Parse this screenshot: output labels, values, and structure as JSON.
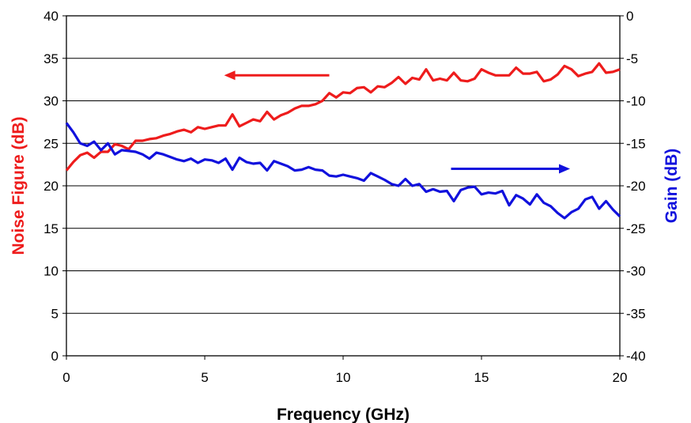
{
  "chart_data": {
    "type": "line",
    "xlabel": "Frequency (GHz)",
    "ylabel_left": "Noise Figure (dB)",
    "ylabel_right": "Gain (dB)",
    "xlim": [
      0,
      20
    ],
    "ylim_left": [
      0,
      40
    ],
    "ylim_right": [
      -40,
      0
    ],
    "x_ticks": [
      "0",
      "5",
      "10",
      "15",
      "20"
    ],
    "y_ticks_left": [
      "0",
      "5",
      "10",
      "15",
      "20",
      "25",
      "30",
      "35",
      "40"
    ],
    "y_ticks_right": [
      "-40",
      "-35",
      "-30",
      "-25",
      "-20",
      "-15",
      "-10",
      "-5",
      "0"
    ],
    "grid": "horizontal",
    "series": [
      {
        "axis": "left",
        "color": "#ee1c1c",
        "x": [
          0,
          0.25,
          0.5,
          0.75,
          1,
          1.25,
          1.5,
          1.75,
          2,
          2.25,
          2.5,
          2.75,
          3,
          3.25,
          3.5,
          3.75,
          4,
          4.25,
          4.5,
          4.75,
          5,
          5.25,
          5.5,
          5.75,
          6,
          6.25,
          6.5,
          6.75,
          7,
          7.25,
          7.5,
          7.75,
          8,
          8.25,
          8.5,
          8.75,
          9,
          9.25,
          9.5,
          9.75,
          10,
          10.25,
          10.5,
          10.75,
          11,
          11.25,
          11.5,
          11.75,
          12,
          12.25,
          12.5,
          12.75,
          13,
          13.25,
          13.5,
          13.75,
          14,
          14.25,
          14.5,
          14.75,
          15,
          15.25,
          15.5,
          15.75,
          16,
          16.25,
          16.5,
          16.75,
          17,
          17.25,
          17.5,
          17.75,
          18,
          18.25,
          18.5,
          18.75,
          19,
          19.25,
          19.5,
          19.75,
          20
        ],
        "values": [
          21.8,
          22.8,
          23.6,
          23.9,
          23.3,
          24.0,
          24.0,
          24.9,
          24.7,
          24.3,
          25.3,
          25.3,
          25.5,
          25.6,
          25.9,
          26.1,
          26.4,
          26.6,
          26.3,
          26.9,
          26.7,
          26.9,
          27.1,
          27.1,
          28.4,
          27.0,
          27.4,
          27.8,
          27.6,
          28.7,
          27.8,
          28.3,
          28.6,
          29.1,
          29.4,
          29.4,
          29.6,
          30.0,
          30.9,
          30.4,
          31.0,
          30.9,
          31.5,
          31.6,
          31.0,
          31.7,
          31.6,
          32.1,
          32.8,
          32.0,
          32.7,
          32.5,
          33.7,
          32.4,
          32.6,
          32.4,
          33.3,
          32.4,
          32.3,
          32.6,
          33.7,
          33.3,
          33.0,
          33.0,
          33.0,
          33.9,
          33.2,
          33.2,
          33.4,
          32.3,
          32.5,
          33.1,
          34.1,
          33.7,
          32.9,
          33.2,
          33.4,
          34.4,
          33.3,
          33.4,
          33.7
        ]
      },
      {
        "axis": "right",
        "color": "#1111dd",
        "x": [
          0,
          0.25,
          0.5,
          0.75,
          1,
          1.25,
          1.5,
          1.75,
          2,
          2.25,
          2.5,
          2.75,
          3,
          3.25,
          3.5,
          3.75,
          4,
          4.25,
          4.5,
          4.75,
          5,
          5.25,
          5.5,
          5.75,
          6,
          6.25,
          6.5,
          6.75,
          7,
          7.25,
          7.5,
          7.75,
          8,
          8.25,
          8.5,
          8.75,
          9,
          9.25,
          9.5,
          9.75,
          10,
          10.25,
          10.5,
          10.75,
          11,
          11.25,
          11.5,
          11.75,
          12,
          12.25,
          12.5,
          12.75,
          13,
          13.25,
          13.5,
          13.75,
          14,
          14.25,
          14.5,
          14.75,
          15,
          15.25,
          15.5,
          15.75,
          16,
          16.25,
          16.5,
          16.75,
          17,
          17.25,
          17.5,
          17.75,
          18,
          18.25,
          18.5,
          18.75,
          19,
          19.25,
          19.5,
          19.75,
          20
        ],
        "values": [
          -12.6,
          -13.7,
          -15.0,
          -15.3,
          -14.8,
          -15.8,
          -15.0,
          -16.3,
          -15.8,
          -15.9,
          -16.0,
          -16.3,
          -16.8,
          -16.1,
          -16.3,
          -16.6,
          -16.9,
          -17.1,
          -16.8,
          -17.3,
          -16.9,
          -17.0,
          -17.3,
          -16.8,
          -18.1,
          -16.7,
          -17.2,
          -17.4,
          -17.3,
          -18.2,
          -17.1,
          -17.4,
          -17.7,
          -18.2,
          -18.1,
          -17.8,
          -18.1,
          -18.2,
          -18.8,
          -18.9,
          -18.7,
          -18.9,
          -19.1,
          -19.4,
          -18.5,
          -18.9,
          -19.3,
          -19.8,
          -20.0,
          -19.2,
          -20.0,
          -19.8,
          -20.7,
          -20.4,
          -20.7,
          -20.6,
          -21.8,
          -20.5,
          -20.2,
          -20.1,
          -21.0,
          -20.8,
          -20.9,
          -20.6,
          -22.3,
          -21.1,
          -21.5,
          -22.2,
          -21.0,
          -22.0,
          -22.4,
          -23.2,
          -23.8,
          -23.1,
          -22.7,
          -21.6,
          -21.3,
          -22.7,
          -21.8,
          -22.8,
          -23.6
        ]
      }
    ],
    "annotations": [
      {
        "type": "arrow",
        "direction": "left",
        "color": "#ee1c1c",
        "from": [
          9.5,
          33.0
        ],
        "to": [
          5.7,
          33.0
        ]
      },
      {
        "type": "arrow",
        "direction": "right",
        "color": "#1111dd",
        "from": [
          13.9,
          -18.0
        ],
        "to": [
          18.2,
          -18.0
        ]
      }
    ]
  }
}
